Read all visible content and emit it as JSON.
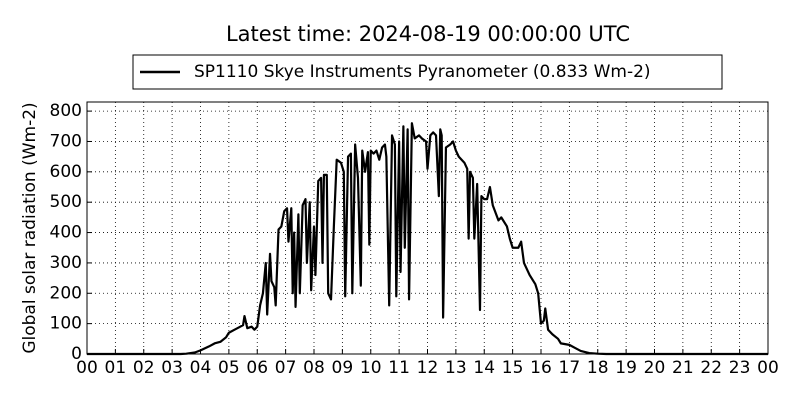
{
  "chart_data": {
    "type": "line",
    "title": "Latest time: 2024-08-19 00:00:00 UTC",
    "y_label": "Global solar radiation (Wm-2)",
    "x": [
      0,
      3.3,
      3.5,
      3.8,
      4.0,
      4.3,
      4.5,
      4.7,
      4.9,
      5.0,
      5.2,
      5.4,
      5.5,
      5.55,
      5.65,
      5.8,
      5.9,
      6.0,
      6.1,
      6.2,
      6.3,
      6.35,
      6.45,
      6.5,
      6.6,
      6.65,
      6.75,
      6.85,
      6.95,
      7.05,
      7.1,
      7.2,
      7.25,
      7.3,
      7.35,
      7.45,
      7.5,
      7.6,
      7.7,
      7.75,
      7.85,
      7.9,
      8.0,
      8.05,
      8.15,
      8.25,
      8.3,
      8.35,
      8.45,
      8.5,
      8.6,
      8.7,
      8.8,
      8.95,
      9.05,
      9.1,
      9.2,
      9.3,
      9.35,
      9.45,
      9.55,
      9.65,
      9.7,
      9.8,
      9.9,
      9.95,
      10.0,
      10.1,
      10.2,
      10.3,
      10.4,
      10.5,
      10.55,
      10.65,
      10.75,
      10.85,
      10.9,
      11.0,
      11.05,
      11.15,
      11.2,
      11.3,
      11.35,
      11.45,
      11.55,
      11.7,
      11.8,
      11.95,
      12.0,
      12.1,
      12.2,
      12.3,
      12.4,
      12.45,
      12.5,
      12.55,
      12.65,
      12.8,
      12.9,
      13.0,
      13.1,
      13.3,
      13.4,
      13.45,
      13.5,
      13.6,
      13.65,
      13.75,
      13.85,
      13.9,
      14.0,
      14.1,
      14.2,
      14.3,
      14.5,
      14.6,
      14.8,
      14.9,
      15.0,
      15.2,
      15.3,
      15.4,
      15.6,
      15.8,
      15.9,
      16.0,
      16.1,
      16.15,
      16.25,
      16.4,
      16.6,
      16.7,
      17.0,
      17.2,
      17.4,
      17.7,
      18.0,
      18.3,
      24
    ],
    "series": [
      {
        "name": "SP1110 Skye Instruments Pyranometer (0.833 Wm-2)",
        "color": "#000000",
        "values": [
          0,
          0,
          1,
          5,
          12,
          25,
          35,
          40,
          55,
          70,
          80,
          90,
          95,
          125,
          85,
          90,
          80,
          90,
          160,
          200,
          300,
          130,
          330,
          240,
          220,
          160,
          410,
          420,
          470,
          480,
          370,
          480,
          200,
          400,
          155,
          460,
          200,
          490,
          510,
          300,
          500,
          210,
          420,
          260,
          570,
          580,
          300,
          590,
          590,
          200,
          180,
          420,
          640,
          630,
          600,
          190,
          650,
          660,
          200,
          690,
          580,
          225,
          670,
          600,
          665,
          360,
          670,
          660,
          670,
          640,
          680,
          690,
          650,
          160,
          720,
          690,
          190,
          700,
          270,
          750,
          350,
          740,
          180,
          760,
          710,
          720,
          710,
          700,
          610,
          720,
          730,
          720,
          520,
          740,
          720,
          120,
          680,
          690,
          700,
          670,
          650,
          630,
          610,
          380,
          600,
          580,
          380,
          560,
          145,
          520,
          510,
          510,
          550,
          490,
          440,
          450,
          420,
          380,
          350,
          350,
          370,
          300,
          260,
          230,
          200,
          100,
          110,
          150,
          80,
          65,
          50,
          35,
          30,
          20,
          10,
          3,
          1,
          0,
          0
        ]
      }
    ],
    "xlim": [
      0,
      24
    ],
    "xticks": [
      {
        "value": 0,
        "label": "00"
      },
      {
        "value": 1,
        "label": "01"
      },
      {
        "value": 2,
        "label": "02"
      },
      {
        "value": 3,
        "label": "03"
      },
      {
        "value": 4,
        "label": "04"
      },
      {
        "value": 5,
        "label": "05"
      },
      {
        "value": 6,
        "label": "06"
      },
      {
        "value": 7,
        "label": "07"
      },
      {
        "value": 8,
        "label": "08"
      },
      {
        "value": 9,
        "label": "09"
      },
      {
        "value": 10,
        "label": "10"
      },
      {
        "value": 11,
        "label": "11"
      },
      {
        "value": 12,
        "label": "12"
      },
      {
        "value": 13,
        "label": "13"
      },
      {
        "value": 14,
        "label": "14"
      },
      {
        "value": 15,
        "label": "15"
      },
      {
        "value": 16,
        "label": "16"
      },
      {
        "value": 17,
        "label": "17"
      },
      {
        "value": 18,
        "label": "18"
      },
      {
        "value": 19,
        "label": "19"
      },
      {
        "value": 20,
        "label": "20"
      },
      {
        "value": 21,
        "label": "21"
      },
      {
        "value": 22,
        "label": "22"
      },
      {
        "value": 23,
        "label": "23"
      },
      {
        "value": 24,
        "label": "00"
      }
    ],
    "ylim": [
      0,
      830
    ],
    "yticks": [
      0,
      100,
      200,
      300,
      400,
      500,
      600,
      700,
      800
    ],
    "grid": true
  }
}
